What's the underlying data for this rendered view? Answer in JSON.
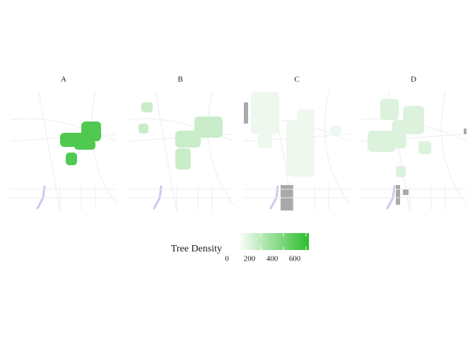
{
  "facets": [
    "A",
    "B",
    "C",
    "D"
  ],
  "legend": {
    "title": "Tree Density",
    "clim": [
      0,
      625
    ],
    "ticks": [
      0,
      200,
      400,
      600
    ],
    "low_color": "#ffffff",
    "high_color": "#2bbd2b"
  }
}
